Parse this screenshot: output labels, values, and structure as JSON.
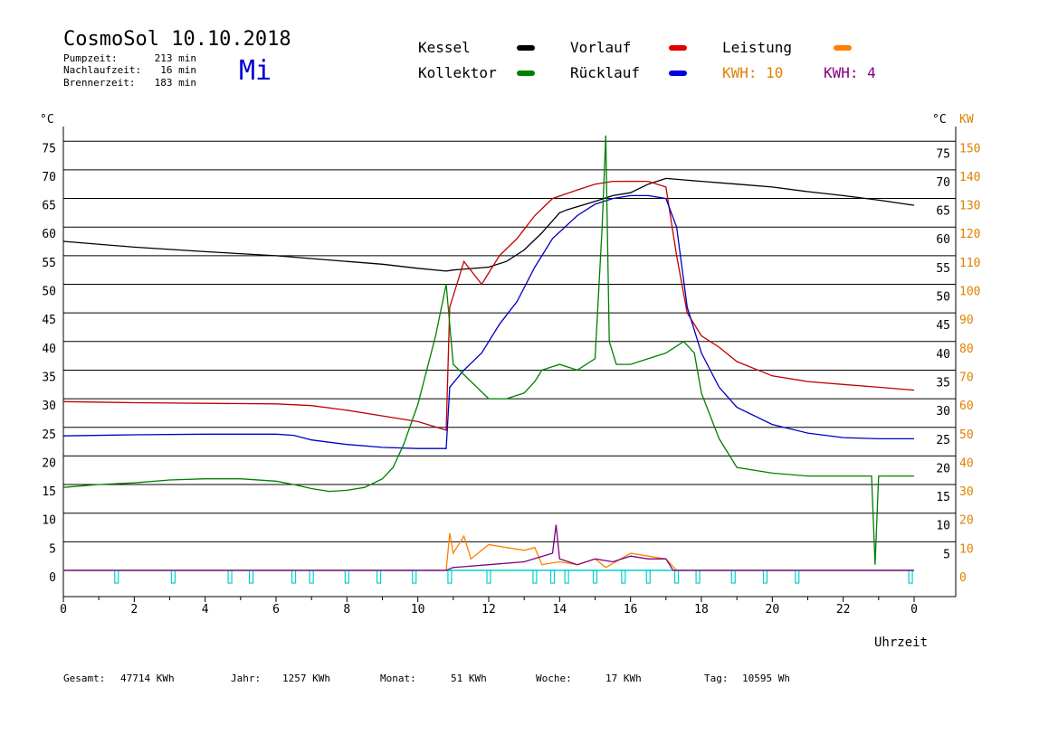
{
  "header": {
    "title": "CosmoSol 10.10.2018",
    "day": "Mi",
    "stats": [
      {
        "label": "Pumpzeit:",
        "value": "213 min"
      },
      {
        "label": "Nachlaufzeit:",
        "value": "16 min"
      },
      {
        "label": "Brennerzeit:",
        "value": "183 min"
      }
    ]
  },
  "legend": [
    {
      "label": "Kessel",
      "color": "#000000"
    },
    {
      "label": "Kollektor",
      "color": "#008000"
    },
    {
      "label": "Vorlauf",
      "color": "#e00000"
    },
    {
      "label": "Rücklauf",
      "color": "#0000e0"
    },
    {
      "label": "Leistung",
      "color": "#ff8000"
    }
  ],
  "kwh_labels": [
    {
      "text": "KWH: 10",
      "color": "#e08000"
    },
    {
      "text": "KWH: 4",
      "color": "#800080"
    }
  ],
  "footer": [
    {
      "label": "Gesamt:",
      "value": "47714 KWh"
    },
    {
      "label": "Jahr:",
      "value": "1257 KWh"
    },
    {
      "label": "Monat:",
      "value": "51 KWh"
    },
    {
      "label": "Woche:",
      "value": "17 KWh"
    },
    {
      "label": "Tag:",
      "value": "10595 Wh"
    }
  ],
  "chart_data": {
    "type": "line",
    "xlabel": "Uhrzeit",
    "ylabel_left": "°C",
    "ylabel_right_temp": "°C",
    "ylabel_right_power": "KW",
    "x_ticks": [
      "0",
      "2",
      "4",
      "6",
      "8",
      "10",
      "12",
      "14",
      "16",
      "18",
      "20",
      "22",
      "0"
    ],
    "y_ticks": [
      0,
      5,
      10,
      15,
      20,
      25,
      30,
      35,
      40,
      45,
      50,
      55,
      60,
      65,
      70,
      75
    ],
    "kw_ticks": [
      0,
      10,
      20,
      30,
      40,
      50,
      60,
      70,
      80,
      90,
      100,
      110,
      120,
      130,
      140,
      150
    ],
    "xlim": [
      0,
      24
    ],
    "ylim": [
      0,
      78
    ],
    "grid": true,
    "series": [
      {
        "name": "Kessel",
        "color": "#000000",
        "x": [
          0,
          2,
          4,
          6,
          8,
          9,
          10,
          10.8,
          11,
          12,
          12.5,
          13,
          13.5,
          14,
          14.2,
          15,
          15.5,
          16,
          16.5,
          17,
          18,
          19,
          20,
          21,
          22,
          23,
          24
        ],
        "y": [
          57.5,
          56.5,
          55.7,
          55,
          54,
          53.5,
          52.8,
          52.3,
          52.5,
          53,
          54,
          56,
          59,
          62.5,
          63,
          64.5,
          65.5,
          66,
          67.5,
          68.5,
          68,
          67.5,
          67,
          66.2,
          65.5,
          64.7,
          63.8
        ]
      },
      {
        "name": "Vorlauf",
        "color": "#c00000",
        "x": [
          0,
          2,
          4,
          6,
          7,
          8,
          9,
          10,
          10.8,
          10.9,
          11.3,
          11.8,
          12.3,
          12.8,
          13.3,
          13.8,
          14.5,
          15,
          15.5,
          16,
          16.5,
          17,
          17.3,
          17.6,
          18,
          18.5,
          19,
          20,
          21,
          22,
          23,
          24
        ],
        "y": [
          29.5,
          29.3,
          29.2,
          29.1,
          28.8,
          28,
          27,
          26,
          24.5,
          46,
          54,
          50,
          55,
          58,
          62,
          65,
          66.5,
          67.5,
          68,
          68,
          68,
          67,
          55,
          45,
          41,
          39,
          36.5,
          34,
          33,
          32.5,
          32,
          31.5
        ]
      },
      {
        "name": "Rücklauf",
        "color": "#0000c0",
        "x": [
          0,
          2,
          4,
          6,
          6.5,
          7,
          8,
          9,
          10,
          10.8,
          10.9,
          11.3,
          11.8,
          12.3,
          12.8,
          13.3,
          13.8,
          14.5,
          15,
          15.5,
          16,
          16.5,
          17,
          17.3,
          17.6,
          18,
          18.5,
          19,
          20,
          21,
          22,
          23,
          24
        ],
        "y": [
          23.5,
          23.7,
          23.8,
          23.8,
          23.6,
          22.8,
          22,
          21.5,
          21.3,
          21.3,
          32,
          35,
          38,
          43,
          47,
          53,
          58,
          62,
          64,
          65,
          65.5,
          65.5,
          65,
          60,
          46,
          38,
          32,
          28.5,
          25.5,
          24,
          23.2,
          23,
          23
        ]
      },
      {
        "name": "Kollektor",
        "color": "#008000",
        "x": [
          0,
          1,
          2,
          3,
          4,
          5,
          6,
          6.5,
          7,
          7.5,
          8,
          8.5,
          9,
          9.3,
          9.6,
          10,
          10.5,
          10.8,
          11,
          11.5,
          12,
          12.5,
          13,
          13.3,
          13.5,
          14,
          14.5,
          15,
          15.2,
          15.3,
          15.4,
          15.6,
          16,
          16.5,
          17,
          17.5,
          17.8,
          18,
          18.5,
          19,
          20,
          21,
          22,
          22.8,
          22.9,
          23,
          24
        ],
        "y": [
          14.5,
          15,
          15.3,
          15.8,
          16,
          16,
          15.6,
          15,
          14.3,
          13.8,
          14,
          14.5,
          16,
          18,
          22,
          29,
          41,
          50,
          36,
          33,
          30,
          30,
          31,
          33,
          35,
          36,
          35,
          37,
          60,
          76,
          40,
          36,
          36,
          37,
          38,
          40,
          38,
          31,
          23,
          18,
          17,
          16.5,
          16.5,
          16.5,
          1,
          16.5,
          16.5
        ]
      },
      {
        "name": "Leistung",
        "color": "#ff8000",
        "x": [
          0,
          10.8,
          10.9,
          11.0,
          11.3,
          11.5,
          12,
          12.5,
          13,
          13.3,
          13.5,
          14,
          14.5,
          15,
          15.3,
          16,
          16.5,
          17,
          17.3,
          24
        ],
        "y": [
          0,
          0,
          6.5,
          3,
          6,
          2,
          4.5,
          4,
          3.5,
          4,
          1,
          1.5,
          1,
          2,
          0.5,
          3,
          2.5,
          2,
          0,
          0
        ]
      },
      {
        "name": "KWH",
        "color": "#800080",
        "x": [
          0,
          10.8,
          11,
          12,
          13,
          13.8,
          13.9,
          14,
          14.5,
          15,
          15.5,
          16,
          16.5,
          17,
          17.2,
          24
        ],
        "y": [
          0,
          0,
          0.5,
          1,
          1.5,
          3,
          8,
          2,
          1,
          2,
          1.5,
          2.5,
          2,
          2,
          0,
          0
        ]
      }
    ],
    "pump_markers_hours": [
      1.5,
      3.1,
      4.7,
      5.3,
      6.5,
      7,
      8,
      8.9,
      9.9,
      10.9,
      12,
      13.3,
      13.8,
      14.2,
      15,
      15.8,
      16.5,
      17.3,
      17.9,
      18.9,
      19.8,
      20.7,
      23.9
    ]
  }
}
